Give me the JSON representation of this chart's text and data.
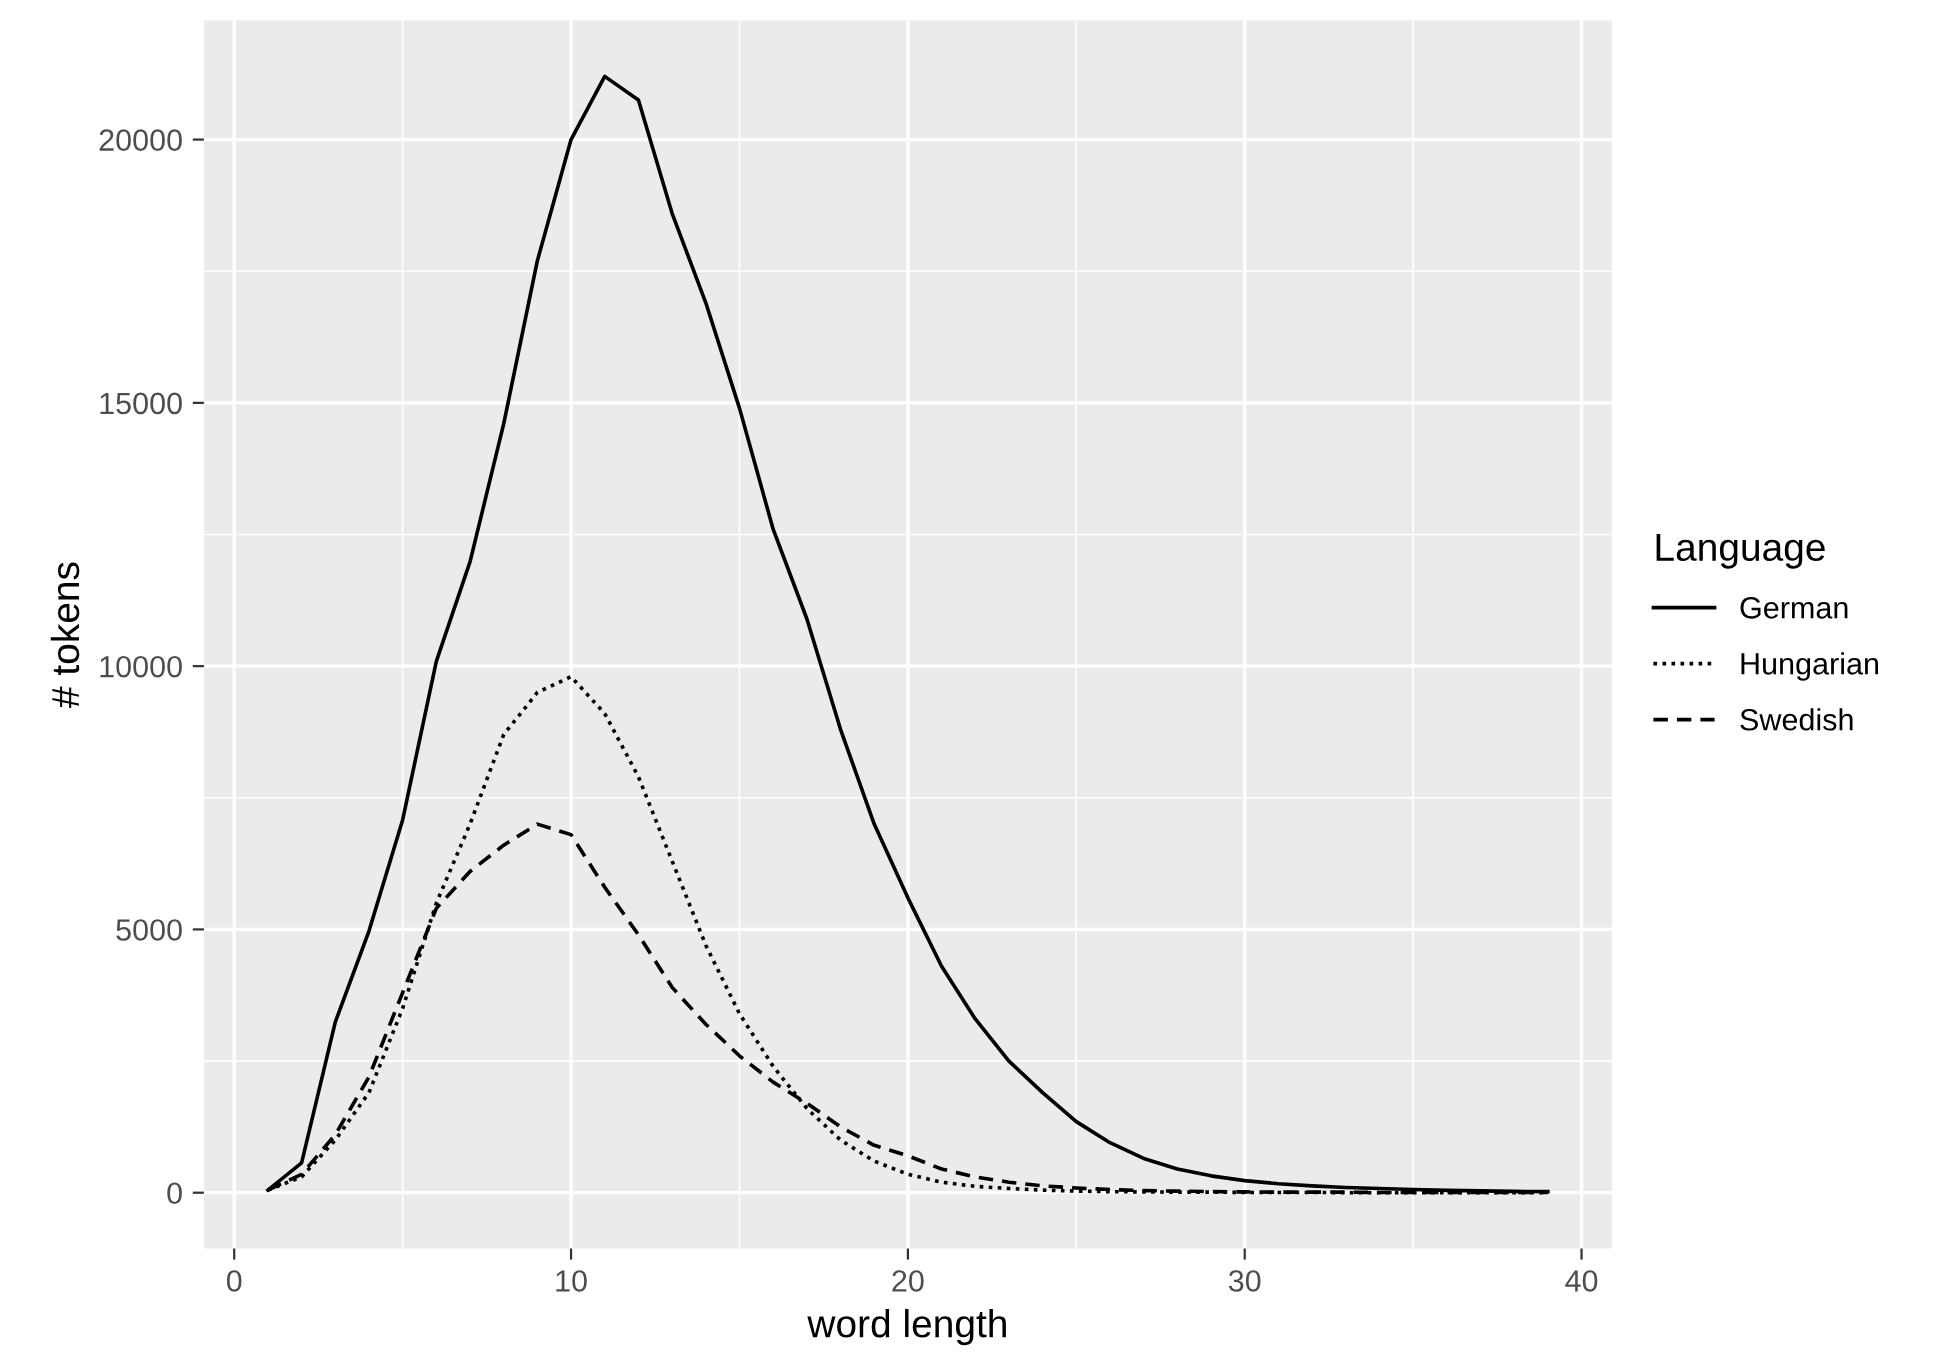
{
  "chart_data": {
    "type": "line",
    "xlabel": "word length",
    "ylabel": "# tokens",
    "legend_title": "Language",
    "legend": "right",
    "grid": true,
    "x": [
      1,
      2,
      3,
      4,
      5,
      6,
      7,
      8,
      9,
      10,
      11,
      12,
      13,
      14,
      15,
      16,
      17,
      18,
      19,
      20,
      21,
      22,
      23,
      24,
      25,
      26,
      27,
      28,
      29,
      30,
      31,
      32,
      33,
      34,
      35,
      36,
      37,
      38,
      39
    ],
    "xlim": [
      -0.9,
      40.9
    ],
    "xticks": [
      0,
      10,
      20,
      30,
      40
    ],
    "ylim": [
      -1060,
      22260
    ],
    "yticks": [
      0,
      5000,
      10000,
      15000,
      20000
    ],
    "series": [
      {
        "name": "German",
        "color": "#000000",
        "line_style": "solid",
        "values": [
          50,
          565,
          3240,
          4970,
          7080,
          10090,
          11980,
          14600,
          17700,
          20000,
          21200,
          20750,
          18600,
          16900,
          14900,
          12600,
          10900,
          8800,
          7000,
          5600,
          4300,
          3300,
          2500,
          1900,
          1350,
          950,
          650,
          450,
          320,
          230,
          170,
          130,
          100,
          80,
          60,
          45,
          35,
          25,
          20
        ]
      },
      {
        "name": "Hungarian",
        "color": "#000000",
        "line_style": "dotted",
        "values": [
          50,
          300,
          1000,
          1900,
          3500,
          5500,
          7000,
          8700,
          9500,
          9800,
          9100,
          7900,
          6300,
          4700,
          3400,
          2400,
          1600,
          1000,
          600,
          350,
          200,
          120,
          80,
          50,
          30,
          20,
          15,
          10,
          10,
          5,
          5,
          5,
          0,
          0,
          0,
          0,
          0,
          0,
          0
        ]
      },
      {
        "name": "Swedish",
        "color": "#000000",
        "line_style": "dashed",
        "values": [
          50,
          350,
          1100,
          2200,
          3800,
          5400,
          6100,
          6600,
          7000,
          6800,
          5800,
          4900,
          3900,
          3200,
          2600,
          2100,
          1700,
          1250,
          900,
          700,
          450,
          300,
          200,
          130,
          90,
          60,
          40,
          30,
          20,
          15,
          10,
          10,
          10,
          5,
          5,
          5,
          5,
          5,
          5
        ]
      }
    ]
  }
}
